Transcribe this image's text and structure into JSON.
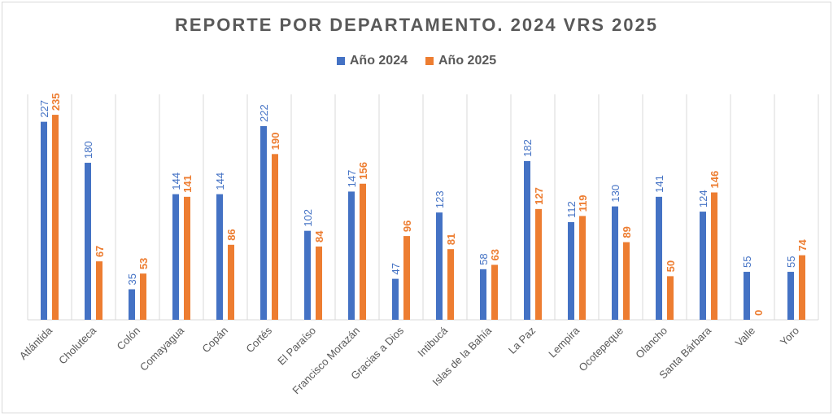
{
  "colors": {
    "series1": "#4472C4",
    "series2": "#ED7D31",
    "grid": "#d9d9d9",
    "axis_text": "#595959"
  },
  "chart_data": {
    "type": "bar",
    "title": "REPORTE POR DEPARTAMENTO. 2024 VRS 2025",
    "xlabel": "",
    "ylabel": "",
    "legend_position": "top",
    "grid": "vertical",
    "ylim": [
      0,
      250
    ],
    "categories": [
      "Atlántida",
      "Choluteca",
      "Colón",
      "Comayagua",
      "Copán",
      "Cortés",
      "El Paraíso",
      "Francisco Morazán",
      "Gracias a Dios",
      "Intibucá",
      "Islas de la Bahía",
      "La Paz",
      "Lempira",
      "Ocotepeque",
      "Olancho",
      "Santa Bárbara",
      "Valle",
      "Yoro"
    ],
    "series": [
      {
        "name": "Año 2024",
        "values": [
          227,
          180,
          35,
          144,
          144,
          222,
          102,
          147,
          47,
          123,
          58,
          182,
          112,
          130,
          141,
          124,
          55,
          55
        ]
      },
      {
        "name": "Año 2025",
        "values": [
          235,
          67,
          53,
          141,
          86,
          190,
          84,
          156,
          96,
          81,
          63,
          127,
          119,
          89,
          50,
          146,
          0,
          74
        ]
      }
    ]
  }
}
